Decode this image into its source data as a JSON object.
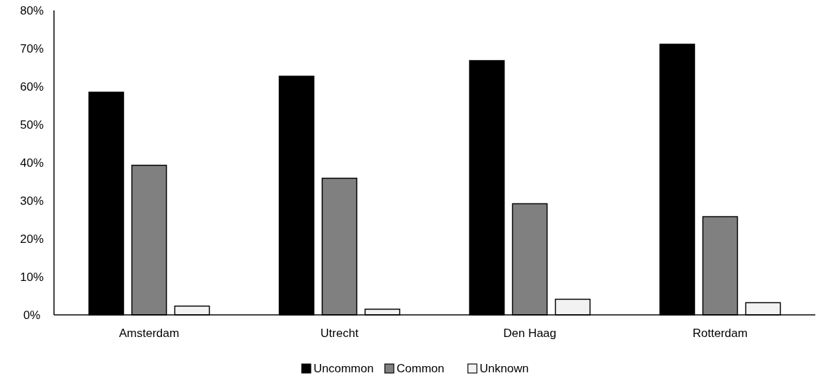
{
  "chart_data": {
    "type": "bar",
    "categories": [
      "Amsterdam",
      "Utrecht",
      "Den Haag",
      "Rotterdam"
    ],
    "series": [
      {
        "name": "Uncommon",
        "color": "#000000",
        "values": [
          58.5,
          62.7,
          66.8,
          71.1
        ]
      },
      {
        "name": "Common",
        "color": "#808080",
        "values": [
          39.3,
          35.9,
          29.2,
          25.8
        ]
      },
      {
        "name": "Unknown",
        "color": "#f2f2f2",
        "values": [
          2.3,
          1.5,
          4.1,
          3.2
        ]
      }
    ],
    "ylim": [
      0,
      80
    ],
    "yticks": [
      {
        "value": 0,
        "label": "0%"
      },
      {
        "value": 10,
        "label": "10%"
      },
      {
        "value": 20,
        "label": "20%"
      },
      {
        "value": 30,
        "label": "30%"
      },
      {
        "value": 40,
        "label": "40%"
      },
      {
        "value": 50,
        "label": "50%"
      },
      {
        "value": 60,
        "label": "60%"
      },
      {
        "value": 70,
        "label": "70%"
      },
      {
        "value": 80,
        "label": "80%"
      }
    ],
    "legend": "bottom"
  }
}
